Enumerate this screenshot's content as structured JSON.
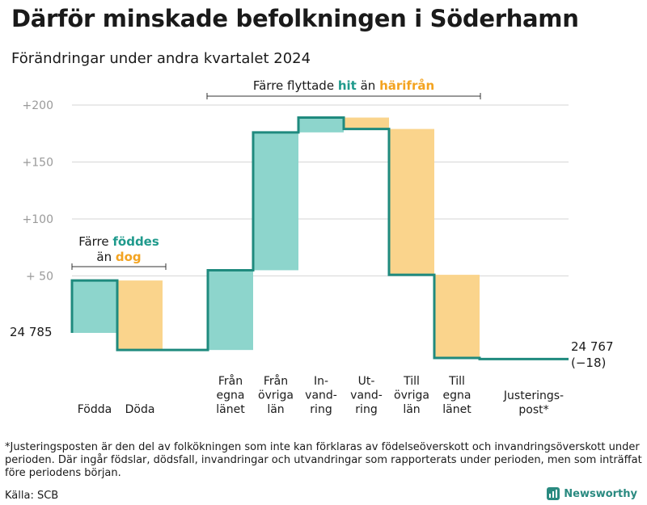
{
  "title": "Därför minskade befolkningen i Söderhamn",
  "subtitle": "Förändringar under andra kvartalet 2024",
  "chart_data": {
    "type": "waterfall",
    "start": {
      "value": 24785,
      "label": "24  785"
    },
    "end": {
      "value": 24767,
      "label_line1": "24 767",
      "label_line2": "(−18)"
    },
    "y_axis": {
      "min": -20,
      "max": 200,
      "ticks": [
        {
          "value": 200,
          "label": "+200"
        },
        {
          "value": 150,
          "label": "+150"
        },
        {
          "value": 100,
          "label": "+100"
        },
        {
          "value": 50,
          "label": "+  50"
        }
      ]
    },
    "steps": [
      {
        "key": "fodda",
        "lines": [
          "Födda"
        ],
        "delta": 46,
        "kind": "plus"
      },
      {
        "key": "doda",
        "lines": [
          "Döda"
        ],
        "delta": -61,
        "kind": "minus"
      },
      {
        "key": "gap",
        "lines": [],
        "delta": 0,
        "kind": "none"
      },
      {
        "key": "fran_egna",
        "lines": [
          "Från",
          "egna",
          "länet"
        ],
        "delta": 70,
        "kind": "plus"
      },
      {
        "key": "fran_ovriga",
        "lines": [
          "Från",
          "övriga",
          "län"
        ],
        "delta": 121,
        "kind": "plus"
      },
      {
        "key": "invandring",
        "lines": [
          "In-",
          "vand-",
          "ring"
        ],
        "delta": 13,
        "kind": "plus"
      },
      {
        "key": "utvandring",
        "lines": [
          "Ut-",
          "vand-",
          "ring"
        ],
        "delta": -10,
        "kind": "minus"
      },
      {
        "key": "till_ovriga",
        "lines": [
          "Till",
          "övriga",
          "län"
        ],
        "delta": -128,
        "kind": "minus"
      },
      {
        "key": "till_egna",
        "lines": [
          "Till",
          "egna",
          "länet"
        ],
        "delta": -73,
        "kind": "minus"
      },
      {
        "key": "justering",
        "lines": [
          "Justerings-",
          "post*"
        ],
        "delta": -1,
        "kind": "neutral"
      }
    ],
    "colors": {
      "plus": "#8dd5cc",
      "minus": "#fad48c",
      "line": "#1f8a7e",
      "grid": "#d6d6d6",
      "tick": "#9a9a9a",
      "hi_teal": "#1f9a8c",
      "hi_orange": "#f3a320"
    },
    "annotations": {
      "natural": {
        "line1": "Färre ",
        "hi1": "föddes",
        "line2": "än ",
        "hi2": "dog"
      },
      "migration": {
        "pre": "Färre flyttade ",
        "hi1": "hit",
        "mid": " än ",
        "hi2": "härifrån"
      }
    }
  },
  "footnote": "*Justeringsposten är den del av folkökningen som inte kan förklaras av födelseöverskott och invandringsöverskott under perioden. Där ingår födslar, dödsfall, invandringar och utvandringar som rapporterats under perioden, men som inträffat före periodens början.",
  "source": "Källa: SCB",
  "brand": {
    "name": "Newsworthy",
    "icon": "newsworthy-logo-icon"
  }
}
